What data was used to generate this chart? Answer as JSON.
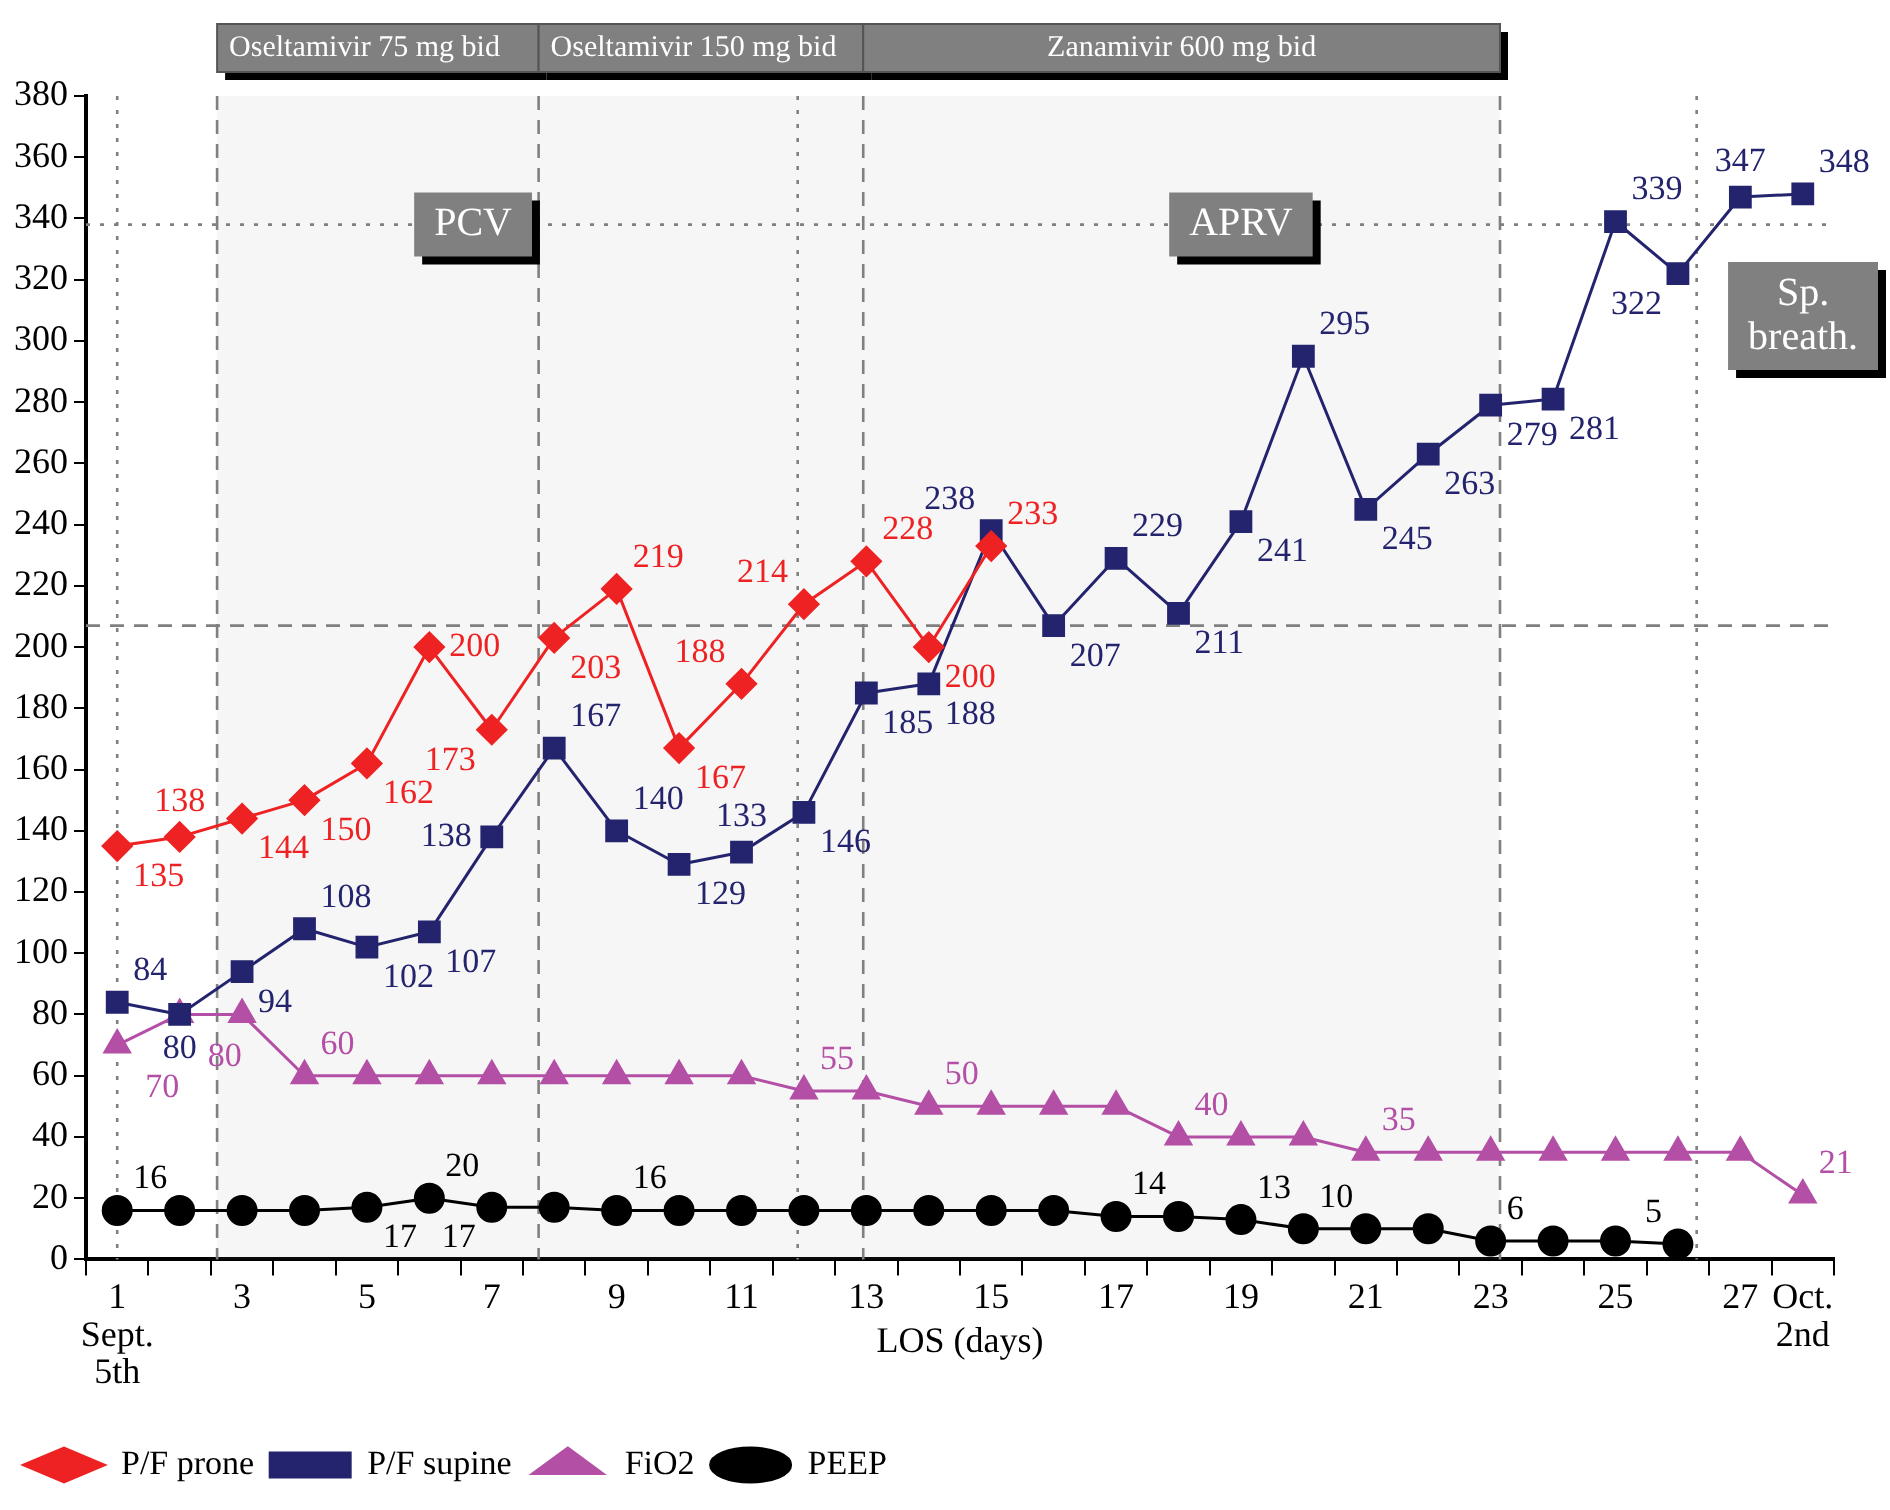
{
  "chart_data": {
    "type": "line",
    "xlabel": "LOS (days)",
    "x": [
      1,
      2,
      3,
      4,
      5,
      6,
      7,
      8,
      9,
      10,
      11,
      12,
      13,
      14,
      15,
      16,
      17,
      18,
      19,
      20,
      21,
      22,
      23,
      24,
      25,
      26,
      27,
      28
    ],
    "series": [
      {
        "name": "P/F prone",
        "color": "#ee2222",
        "marker": "diamond",
        "values": [
          135,
          138,
          144,
          150,
          162,
          200,
          173,
          203,
          219,
          167,
          188,
          214,
          228,
          200,
          233,
          null,
          null,
          null,
          null,
          null,
          null,
          null,
          null,
          null,
          null,
          null,
          null,
          null
        ],
        "value_labels": [
          "135",
          "138",
          "144",
          "150",
          "162",
          "200",
          "173",
          "203",
          "219",
          "167",
          "188",
          "214",
          "228",
          "200",
          "233",
          null,
          null,
          null,
          null,
          null,
          null,
          null,
          null,
          null,
          null,
          null,
          null,
          null
        ]
      },
      {
        "name": "P/F supine",
        "color": "#23236e",
        "marker": "square",
        "values": [
          84,
          80,
          94,
          108,
          102,
          107,
          138,
          167,
          140,
          129,
          133,
          146,
          185,
          188,
          238,
          207,
          229,
          211,
          241,
          295,
          245,
          263,
          279,
          281,
          339,
          322,
          347,
          348
        ],
        "value_labels": [
          "84",
          "80",
          "94",
          "108",
          "102",
          "107",
          "138",
          "167",
          "140",
          "129",
          "133",
          "146",
          "185",
          "188",
          "238",
          "207",
          "229",
          "211",
          "241",
          "295",
          "245",
          "263",
          "279",
          "281",
          "339",
          "322",
          "347",
          "348"
        ]
      },
      {
        "name": "FiO2",
        "color": "#b44fa6",
        "marker": "triangle",
        "values": [
          70,
          80,
          80,
          60,
          60,
          60,
          60,
          60,
          60,
          60,
          60,
          55,
          55,
          50,
          50,
          50,
          50,
          40,
          40,
          40,
          35,
          35,
          35,
          35,
          35,
          35,
          35,
          21
        ],
        "value_labels": [
          "70",
          "80",
          null,
          "60",
          null,
          null,
          null,
          null,
          null,
          null,
          null,
          "55",
          null,
          "50",
          null,
          null,
          null,
          "40",
          null,
          null,
          "35",
          null,
          null,
          null,
          null,
          null,
          null,
          "21"
        ]
      },
      {
        "name": "PEEP",
        "color": "#000000",
        "marker": "circle",
        "values": [
          16,
          16,
          16,
          16,
          17,
          20,
          17,
          17,
          16,
          16,
          16,
          16,
          16,
          16,
          16,
          16,
          14,
          14,
          13,
          10,
          10,
          10,
          6,
          6,
          6,
          5,
          null,
          null
        ],
        "value_labels": [
          "16",
          null,
          null,
          null,
          "17",
          "20",
          "17",
          null,
          "16",
          null,
          null,
          null,
          null,
          null,
          null,
          null,
          "14",
          null,
          "13",
          "10",
          null,
          null,
          "6",
          null,
          null,
          "5",
          null,
          null
        ]
      }
    ],
    "xlim": [
      0.5,
      28.5
    ],
    "xticks": [
      {
        "value": 0.5,
        "label": null
      },
      {
        "value": 1,
        "label": "1\nSept.\n5th"
      },
      {
        "value": 1.5,
        "label": null
      },
      {
        "value": 2.5,
        "label": null
      },
      {
        "value": 3,
        "label": "3"
      },
      {
        "value": 3.5,
        "label": null
      },
      {
        "value": 4.5,
        "label": null
      },
      {
        "value": 5,
        "label": "5"
      },
      {
        "value": 5.5,
        "label": null
      },
      {
        "value": 6.5,
        "label": null
      },
      {
        "value": 7,
        "label": "7"
      },
      {
        "value": 7.5,
        "label": null
      },
      {
        "value": 8.5,
        "label": null
      },
      {
        "value": 9,
        "label": "9"
      },
      {
        "value": 9.5,
        "label": null
      },
      {
        "value": 10.5,
        "label": null
      },
      {
        "value": 11,
        "label": "11"
      },
      {
        "value": 11.5,
        "label": null
      },
      {
        "value": 12.5,
        "label": null
      },
      {
        "value": 13,
        "label": "13"
      },
      {
        "value": 13.5,
        "label": null
      },
      {
        "value": 14.5,
        "label": null
      },
      {
        "value": 15,
        "label": "15"
      },
      {
        "value": 15.5,
        "label": null
      },
      {
        "value": 16.5,
        "label": null
      },
      {
        "value": 17,
        "label": "17"
      },
      {
        "value": 17.5,
        "label": null
      },
      {
        "value": 18.5,
        "label": null
      },
      {
        "value": 19,
        "label": "19"
      },
      {
        "value": 19.5,
        "label": null
      },
      {
        "value": 20.5,
        "label": null
      },
      {
        "value": 21,
        "label": "21"
      },
      {
        "value": 21.5,
        "label": null
      },
      {
        "value": 22.5,
        "label": null
      },
      {
        "value": 23,
        "label": "23"
      },
      {
        "value": 23.5,
        "label": null
      },
      {
        "value": 24.5,
        "label": null
      },
      {
        "value": 25,
        "label": "25"
      },
      {
        "value": 25.5,
        "label": null
      },
      {
        "value": 26.5,
        "label": null
      },
      {
        "value": 27,
        "label": "27"
      },
      {
        "value": 27.5,
        "label": null
      },
      {
        "value": 28,
        "label": "Oct.\n2nd"
      },
      {
        "value": 28.5,
        "label": null
      }
    ],
    "ylim": [
      0,
      380
    ],
    "yticks": [
      0,
      20,
      40,
      60,
      80,
      100,
      120,
      140,
      160,
      180,
      200,
      220,
      240,
      260,
      280,
      300,
      320,
      340,
      360,
      380
    ],
    "ref_lines": [
      {
        "axis": "x",
        "value": 2.6,
        "color": "#808080",
        "line_style": "dashed"
      },
      {
        "axis": "x",
        "value": 7.75,
        "color": "#808080",
        "line_style": "dashed"
      },
      {
        "axis": "x",
        "value": 12.95,
        "color": "#808080",
        "line_style": "dashed"
      },
      {
        "axis": "x",
        "value": 23.15,
        "color": "#808080",
        "line_style": "dashed"
      },
      {
        "axis": "x",
        "value": 1,
        "color": "#808080",
        "line_style": "dotted"
      },
      {
        "axis": "x",
        "value": 11.9,
        "color": "#808080",
        "line_style": "dotted"
      },
      {
        "axis": "x",
        "value": 26.3,
        "color": "#808080",
        "line_style": "dotted"
      },
      {
        "axis": "y",
        "value": 207,
        "color": "#808080",
        "line_style": "dashed"
      },
      {
        "axis": "y",
        "value": 338,
        "color": "#808080",
        "line_style": "dotted"
      }
    ],
    "bands": [
      {
        "axis": "x",
        "from": 2.6,
        "to": 7.75,
        "label": "Oseltamivir 75 mg bid",
        "color": "#808080"
      },
      {
        "axis": "x",
        "from": 7.75,
        "to": 12.95,
        "label": "Oseltamivir 150 mg bid",
        "color": "#808080"
      },
      {
        "axis": "x",
        "from": 12.95,
        "to": 23.15,
        "label": "Zanamivir 600 mg bid",
        "color": "#808080"
      }
    ],
    "annotations": [
      {
        "text": "PCV",
        "x": 6.7,
        "y": 338
      },
      {
        "text": "APRV",
        "x": 19,
        "y": 338
      },
      "Sp. breath."
    ],
    "legend": "bottom"
  }
}
